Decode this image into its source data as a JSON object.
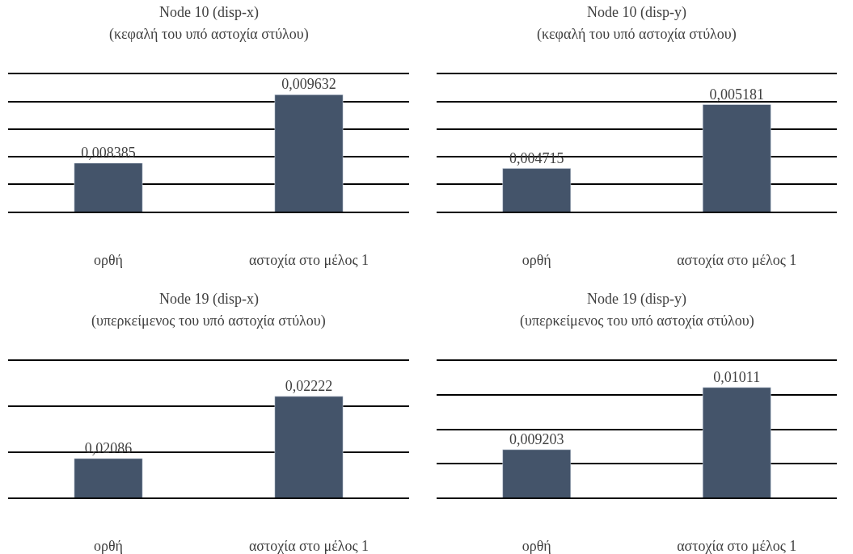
{
  "chart_data": [
    {
      "type": "bar",
      "title": "Node 10 (disp-x)",
      "subtitle": "(κεφαλή του υπό αστοχία στύλου)",
      "categories": [
        "ορθή",
        "αστοχία στο μέλος 1"
      ],
      "values": [
        0.008385,
        0.009632
      ],
      "value_labels": [
        "0,008385",
        "0,009632"
      ],
      "color": "#44546a",
      "ylim": [
        0.0075,
        0.01
      ],
      "yticks": [
        {
          "value": 0.0075,
          "label": null
        },
        {
          "value": 0.008,
          "label": null
        },
        {
          "value": 0.0085,
          "label": null
        },
        {
          "value": 0.009,
          "label": null
        },
        {
          "value": 0.0095,
          "label": null
        },
        {
          "value": 0.01,
          "label": null
        }
      ],
      "grid": "y",
      "tick_labels": "x"
    },
    {
      "type": "bar",
      "title": "Node 10 (disp-y)",
      "subtitle": "(κεφαλή του υπό αστοχία στύλου)",
      "categories": [
        "ορθή",
        "αστοχία στο μέλος 1"
      ],
      "values": [
        0.004715,
        0.005181
      ],
      "value_labels": [
        "0,004715",
        "0,005181"
      ],
      "color": "#44546a",
      "ylim": [
        0.0044,
        0.0054
      ],
      "yticks": [
        {
          "value": 0.0044,
          "label": null
        },
        {
          "value": 0.0046,
          "label": null
        },
        {
          "value": 0.0048,
          "label": null
        },
        {
          "value": 0.005,
          "label": null
        },
        {
          "value": 0.0052,
          "label": null
        },
        {
          "value": 0.0054,
          "label": null
        }
      ],
      "grid": "y",
      "tick_labels": "x"
    },
    {
      "type": "bar",
      "title": "Node 19 (disp-x)",
      "subtitle": "(υπερκείμενος του υπό αστοχία στύλου)",
      "categories": [
        "ορθή",
        "αστοχία στο μέλος 1"
      ],
      "values": [
        0.02086,
        0.02222
      ],
      "value_labels": [
        "0,02086",
        "0,02222"
      ],
      "color": "#44546a",
      "ylim": [
        0.02,
        0.023
      ],
      "yticks": [
        {
          "value": 0.02,
          "label": null
        },
        {
          "value": 0.021,
          "label": null
        },
        {
          "value": 0.022,
          "label": null
        },
        {
          "value": 0.023,
          "label": null
        }
      ],
      "grid": "y",
      "tick_labels": "x"
    },
    {
      "type": "bar",
      "title": "Node 19 (disp-y)",
      "subtitle": "(υπερκείμενος του υπό αστοχία στύλου)",
      "categories": [
        "ορθή",
        "αστοχία στο μέλος 1"
      ],
      "values": [
        0.009203,
        0.01011
      ],
      "value_labels": [
        "0,009203",
        "0,01011"
      ],
      "color": "#44546a",
      "ylim": [
        0.0085,
        0.0105
      ],
      "yticks": [
        {
          "value": 0.0085,
          "label": null
        },
        {
          "value": 0.009,
          "label": null
        },
        {
          "value": 0.0095,
          "label": null
        },
        {
          "value": 0.01,
          "label": null
        },
        {
          "value": 0.0105,
          "label": null
        }
      ],
      "grid": "y",
      "tick_labels": "x"
    }
  ]
}
